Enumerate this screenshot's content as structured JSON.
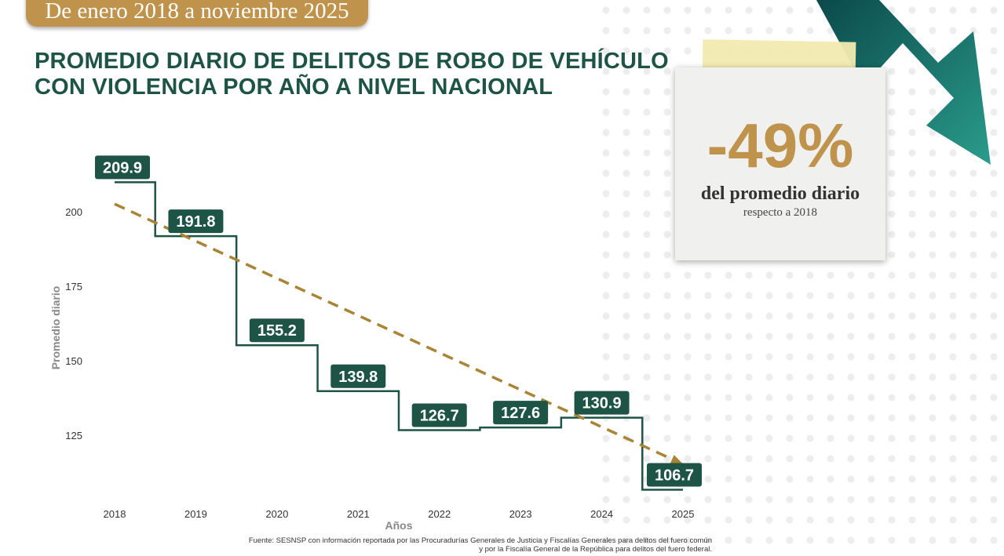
{
  "banner": "De enero 2018 a noviembre 2025",
  "title_line1": "PROMEDIO DIARIO DE DELITOS DE ROBO DE VEHÍCULO",
  "title_line2": "CON VIOLENCIA POR AÑO A NIVEL NACIONAL",
  "callout": {
    "value": "-49%",
    "line1": "del promedio diario",
    "line2": "respecto a 2018"
  },
  "source_line1": "Fuente: SESNSP con información reportada por las Procuradurías Generales de Justicia y Fiscalías Generales para delitos del fuero común",
  "source_line2": "y por la Fiscalía General de la República para delitos del fuero federal.",
  "colors": {
    "series": "#1e5446",
    "trend": "#a88434",
    "accent": "#bf934b",
    "arrow": "#1d7a70"
  },
  "chart_data": {
    "type": "line",
    "step": true,
    "x": [
      2018,
      2019,
      2020,
      2021,
      2022,
      2023,
      2024,
      2025
    ],
    "values": [
      209.9,
      191.8,
      155.2,
      139.8,
      126.7,
      127.6,
      130.9,
      106.7
    ],
    "labels": [
      "209.9",
      "191.8",
      "155.2",
      "139.8",
      "126.7",
      "127.6",
      "130.9",
      "106.7"
    ],
    "xlabel": "Años",
    "ylabel": "Promedio diario",
    "xticks": [
      "2018",
      "2019",
      "2020",
      "2021",
      "2022",
      "2023",
      "2024",
      "2025"
    ],
    "yticks": [
      125,
      150,
      175,
      200
    ],
    "trend": {
      "style": "dashed",
      "from": [
        2018,
        202.6
      ],
      "to": [
        2025,
        115.3
      ]
    },
    "grid": false
  }
}
